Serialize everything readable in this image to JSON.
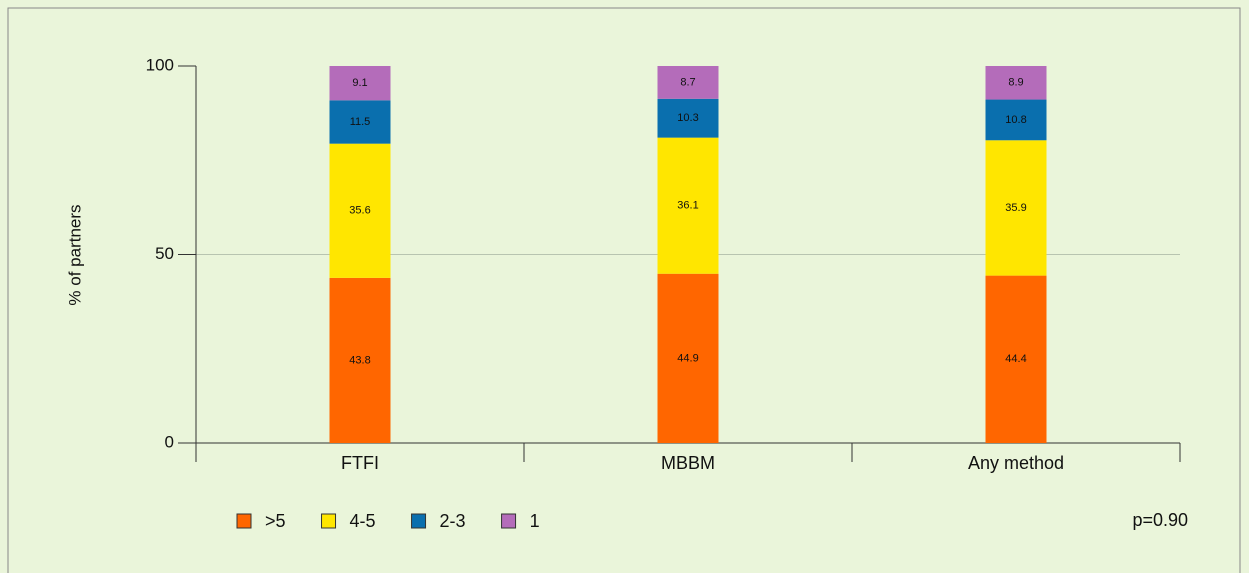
{
  "chart_data": {
    "type": "stacked_bar",
    "categories": [
      "FTFI",
      "MBBM",
      "Any method"
    ],
    "series": [
      {
        "name": ">5",
        "color": "#ff6600",
        "values": [
          43.8,
          44.9,
          44.4
        ]
      },
      {
        "name": "4-5",
        "color": "#ffe600",
        "values": [
          35.6,
          36.1,
          35.9
        ]
      },
      {
        "name": "2-3",
        "color": "#0a6fae",
        "values": [
          11.5,
          10.3,
          10.8
        ]
      },
      {
        "name": "1",
        "color": "#b46cba",
        "values": [
          9.1,
          8.7,
          8.9
        ]
      }
    ],
    "y_label": "% of partners",
    "annotation": "p=0.90",
    "ylim": [
      0,
      100
    ],
    "yticks": [
      0,
      50,
      100
    ],
    "grid": true
  }
}
